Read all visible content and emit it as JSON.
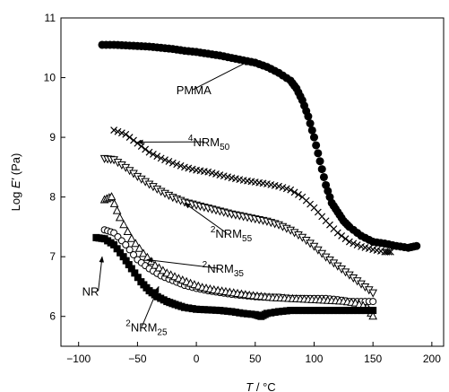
{
  "chart_data": {
    "type": "scatter",
    "title": "",
    "xlabel": {
      "var": "T",
      "unit": " / °C"
    },
    "ylabel": {
      "pre": "Log ",
      "var": "E'",
      "post": " (Pa)"
    },
    "xlim": [
      -115,
      210
    ],
    "ylim": [
      5.5,
      11
    ],
    "xticks": [
      -100,
      -50,
      0,
      50,
      100,
      150,
      200
    ],
    "yticks": [
      6,
      7,
      8,
      9,
      10,
      11
    ],
    "legend": "none",
    "grid": false,
    "series": [
      {
        "name": "PMMA",
        "marker": "filled-circle",
        "points": [
          [
            -80,
            10.55
          ],
          [
            -70,
            10.55
          ],
          [
            -60,
            10.54
          ],
          [
            -50,
            10.53
          ],
          [
            -40,
            10.52
          ],
          [
            -30,
            10.5
          ],
          [
            -20,
            10.48
          ],
          [
            -10,
            10.45
          ],
          [
            0,
            10.43
          ],
          [
            10,
            10.4
          ],
          [
            20,
            10.37
          ],
          [
            30,
            10.33
          ],
          [
            40,
            10.29
          ],
          [
            50,
            10.25
          ],
          [
            60,
            10.18
          ],
          [
            70,
            10.08
          ],
          [
            80,
            9.95
          ],
          [
            85,
            9.82
          ],
          [
            90,
            9.62
          ],
          [
            95,
            9.35
          ],
          [
            100,
            9.0
          ],
          [
            105,
            8.6
          ],
          [
            110,
            8.2
          ],
          [
            115,
            7.9
          ],
          [
            120,
            7.75
          ],
          [
            125,
            7.6
          ],
          [
            130,
            7.5
          ],
          [
            140,
            7.35
          ],
          [
            150,
            7.25
          ],
          [
            160,
            7.22
          ],
          [
            170,
            7.18
          ],
          [
            180,
            7.15
          ],
          [
            187,
            7.18
          ]
        ]
      },
      {
        "name": "4NRM50",
        "marker": "x-cross",
        "points": [
          [
            -70,
            9.12
          ],
          [
            -60,
            9.05
          ],
          [
            -50,
            8.9
          ],
          [
            -40,
            8.75
          ],
          [
            -30,
            8.65
          ],
          [
            -20,
            8.57
          ],
          [
            -10,
            8.5
          ],
          [
            0,
            8.45
          ],
          [
            10,
            8.42
          ],
          [
            20,
            8.37
          ],
          [
            30,
            8.32
          ],
          [
            40,
            8.28
          ],
          [
            50,
            8.25
          ],
          [
            60,
            8.22
          ],
          [
            70,
            8.18
          ],
          [
            80,
            8.12
          ],
          [
            90,
            8.0
          ],
          [
            100,
            7.82
          ],
          [
            110,
            7.6
          ],
          [
            120,
            7.4
          ],
          [
            130,
            7.25
          ],
          [
            140,
            7.17
          ],
          [
            150,
            7.12
          ],
          [
            160,
            7.08
          ],
          [
            165,
            7.08
          ]
        ]
      },
      {
        "name": "2NRM55",
        "marker": "open-triangle-down",
        "points": [
          [
            -78,
            8.65
          ],
          [
            -70,
            8.63
          ],
          [
            -60,
            8.5
          ],
          [
            -50,
            8.35
          ],
          [
            -40,
            8.22
          ],
          [
            -30,
            8.1
          ],
          [
            -20,
            8.0
          ],
          [
            -10,
            7.92
          ],
          [
            0,
            7.87
          ],
          [
            10,
            7.82
          ],
          [
            20,
            7.77
          ],
          [
            30,
            7.72
          ],
          [
            40,
            7.68
          ],
          [
            50,
            7.64
          ],
          [
            60,
            7.6
          ],
          [
            70,
            7.54
          ],
          [
            80,
            7.45
          ],
          [
            90,
            7.33
          ],
          [
            100,
            7.18
          ],
          [
            110,
            7.0
          ],
          [
            120,
            6.85
          ],
          [
            130,
            6.7
          ],
          [
            140,
            6.55
          ],
          [
            150,
            6.4
          ]
        ]
      },
      {
        "name": "2NRM35",
        "marker": "open-circle",
        "points": [
          [
            -78,
            7.45
          ],
          [
            -70,
            7.4
          ],
          [
            -60,
            7.2
          ],
          [
            -50,
            6.95
          ],
          [
            -40,
            6.8
          ],
          [
            -30,
            6.68
          ],
          [
            -20,
            6.6
          ],
          [
            -10,
            6.52
          ],
          [
            0,
            6.47
          ],
          [
            10,
            6.43
          ],
          [
            20,
            6.4
          ],
          [
            30,
            6.37
          ],
          [
            40,
            6.35
          ],
          [
            50,
            6.33
          ],
          [
            60,
            6.32
          ],
          [
            70,
            6.32
          ],
          [
            80,
            6.3
          ],
          [
            90,
            6.3
          ],
          [
            100,
            6.3
          ],
          [
            110,
            6.3
          ],
          [
            120,
            6.28
          ],
          [
            130,
            6.25
          ],
          [
            140,
            6.25
          ],
          [
            150,
            6.25
          ]
        ]
      },
      {
        "name": "2NRM25",
        "marker": "open-triangle-up",
        "points": [
          [
            -78,
            7.95
          ],
          [
            -72,
            8.0
          ],
          [
            -65,
            7.65
          ],
          [
            -55,
            7.3
          ],
          [
            -45,
            7.05
          ],
          [
            -35,
            6.85
          ],
          [
            -25,
            6.72
          ],
          [
            -15,
            6.63
          ],
          [
            -5,
            6.55
          ],
          [
            5,
            6.48
          ],
          [
            15,
            6.44
          ],
          [
            25,
            6.41
          ],
          [
            35,
            6.38
          ],
          [
            45,
            6.35
          ],
          [
            55,
            6.33
          ],
          [
            65,
            6.31
          ],
          [
            75,
            6.3
          ],
          [
            85,
            6.29
          ],
          [
            95,
            6.28
          ],
          [
            105,
            6.27
          ],
          [
            115,
            6.26
          ],
          [
            125,
            6.25
          ],
          [
            135,
            6.22
          ],
          [
            145,
            6.15
          ],
          [
            150,
            6.0
          ]
        ]
      },
      {
        "name": "NR",
        "marker": "filled-square",
        "points": [
          [
            -85,
            7.32
          ],
          [
            -78,
            7.3
          ],
          [
            -70,
            7.2
          ],
          [
            -62,
            7.0
          ],
          [
            -55,
            6.8
          ],
          [
            -47,
            6.58
          ],
          [
            -40,
            6.43
          ],
          [
            -33,
            6.33
          ],
          [
            -25,
            6.25
          ],
          [
            -18,
            6.2
          ],
          [
            -10,
            6.15
          ],
          [
            0,
            6.12
          ],
          [
            10,
            6.11
          ],
          [
            20,
            6.1
          ],
          [
            30,
            6.08
          ],
          [
            40,
            6.05
          ],
          [
            50,
            6.03
          ],
          [
            55,
            6.0
          ],
          [
            60,
            6.05
          ],
          [
            70,
            6.08
          ],
          [
            80,
            6.1
          ],
          [
            90,
            6.1
          ],
          [
            100,
            6.1
          ],
          [
            110,
            6.1
          ],
          [
            120,
            6.1
          ],
          [
            130,
            6.1
          ],
          [
            140,
            6.1
          ],
          [
            150,
            6.1
          ]
        ]
      }
    ],
    "annotations": [
      {
        "id": "pmma",
        "text": "PMMA",
        "sup": "",
        "sub": "",
        "at": [
          -17,
          9.72
        ],
        "arrow_to": [
          45,
          10.28
        ]
      },
      {
        "id": "nrm50",
        "sup": "4",
        "text": "NRM",
        "sub": "50",
        "at": [
          -7,
          8.85
        ],
        "arrow_to": [
          -50,
          8.92
        ]
      },
      {
        "id": "nrm55",
        "sup": "2",
        "text": "NRM",
        "sub": "55",
        "at": [
          12,
          7.32
        ],
        "arrow_to": [
          -10,
          7.9
        ]
      },
      {
        "id": "nrm35",
        "sup": "2",
        "text": "NRM",
        "sub": "35",
        "at": [
          5,
          6.73
        ],
        "arrow_to": [
          -42,
          6.95
        ]
      },
      {
        "id": "nr",
        "text": "NR",
        "sup": "",
        "sub": "",
        "at": [
          -97,
          6.35
        ],
        "arrow_to": [
          -80,
          7.0
        ]
      },
      {
        "id": "nrm25",
        "sup": "2",
        "text": "NRM",
        "sub": "25",
        "at": [
          -60,
          5.75
        ],
        "arrow_to": [
          -32,
          6.5
        ]
      }
    ]
  }
}
